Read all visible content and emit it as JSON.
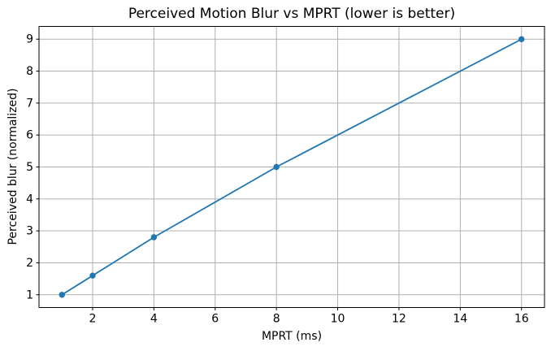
{
  "chart_data": {
    "type": "line",
    "title": "Perceived Motion Blur vs MPRT (lower is better)",
    "xlabel": "MPRT (ms)",
    "ylabel": "Perceived blur (normalized)",
    "series": [
      {
        "name": "perceived-blur",
        "x": [
          1,
          2,
          4,
          8,
          16
        ],
        "y": [
          1.0,
          1.6,
          2.8,
          5.0,
          9.0
        ],
        "color": "#1f77b4",
        "marker": "circle"
      }
    ],
    "x_ticks": [
      2,
      4,
      6,
      8,
      10,
      12,
      14,
      16
    ],
    "y_ticks": [
      1,
      2,
      3,
      4,
      5,
      6,
      7,
      8,
      9
    ],
    "xlim": [
      0.25,
      16.75
    ],
    "ylim": [
      0.6,
      9.4
    ],
    "grid": true,
    "legend": "none",
    "colors": {
      "line": "#1f77b4",
      "grid": "#b0b0b0",
      "axis": "#000000",
      "background": "#ffffff"
    }
  }
}
